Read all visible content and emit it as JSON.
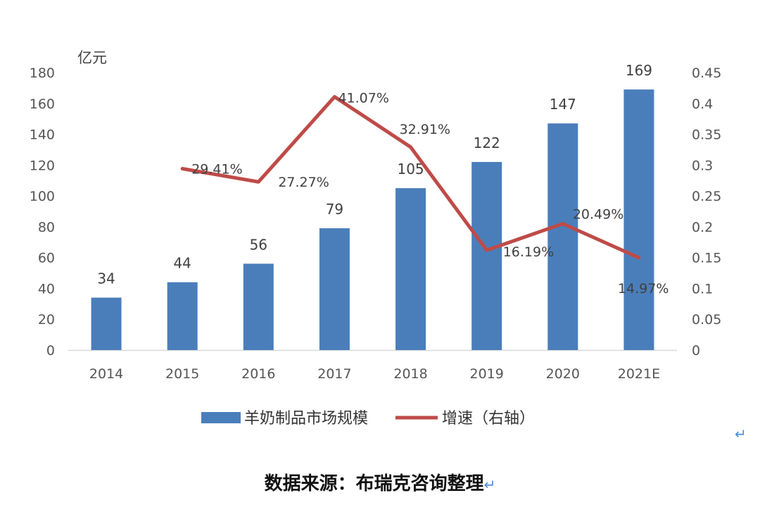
{
  "chart_data": {
    "type": "bar+line",
    "unit_label": "亿元",
    "categories": [
      "2014",
      "2015",
      "2016",
      "2017",
      "2018",
      "2019",
      "2020",
      "2021E"
    ],
    "series": [
      {
        "name": "羊奶制品市场规模",
        "type": "bar",
        "axis": "left",
        "values": [
          34,
          44,
          56,
          79,
          105,
          122,
          147,
          169
        ],
        "labels": [
          "34",
          "44",
          "56",
          "79",
          "105",
          "122",
          "147",
          "169"
        ],
        "color": "#4a7ebb"
      },
      {
        "name": "增速（右轴）",
        "type": "line",
        "axis": "right",
        "values": [
          null,
          0.2941,
          0.2727,
          0.4107,
          0.3291,
          0.1619,
          0.2049,
          0.1497
        ],
        "labels": [
          "",
          "29.41%",
          "27.27%",
          "41.07%",
          "32.91%",
          "16.19%",
          "20.49%",
          "14.97%"
        ],
        "color": "#be4b48"
      }
    ],
    "left_axis": {
      "ylim": [
        0,
        180
      ],
      "ticks": [
        "0",
        "20",
        "40",
        "60",
        "80",
        "100",
        "120",
        "140",
        "160",
        "180"
      ]
    },
    "right_axis": {
      "ylim": [
        0,
        0.45
      ],
      "ticks": [
        "0",
        "0.05",
        "0.1",
        "0.15",
        "0.2",
        "0.25",
        "0.3",
        "0.35",
        "0.4",
        "0.45"
      ]
    },
    "grid": false,
    "legend_position": "bottom"
  },
  "source_text": "数据来源：布瑞克咨询整理",
  "return_mark": "↵"
}
